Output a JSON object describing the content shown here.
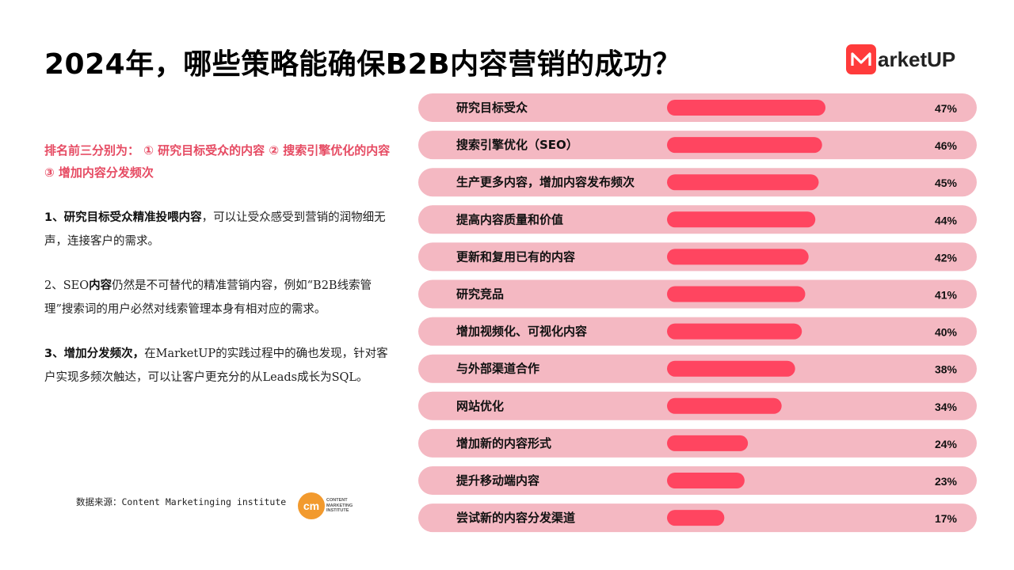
{
  "title": "2024年，哪些策略能确保B2B内容营销的成功？",
  "brand": {
    "text": "arketUP",
    "accent_color": "#ff3b3b",
    "mark_icon": "m-logo-icon"
  },
  "highlight": "排名前三分别为： ① 研究目标受众的内容 ② 搜索引擎优化的内容 ③ 增加内容分发频次",
  "points": [
    {
      "bold": "1、研究目标受众精准投喂内容",
      "text": "，可以让受众感受到营销的润物细无声，连接客户的需求。"
    },
    {
      "prefix": " 2、SEO",
      "bold": "内容",
      "text": "仍然是不可替代的精准营销内容，例如“B2B线索管理”搜索词的用户必然对线索管理本身有相对应的需求。"
    },
    {
      "bold": "3、增加分发频次，",
      "text": "在MarketUP的实践过程中的确也发现，针对客户实现多频次触达，可以让客户更充分的从Leads成长为SQL。"
    }
  ],
  "source": "数据来源：Content Marketinging institute",
  "cmi_logo": {
    "mark": "cm",
    "lines": [
      "CONTENT",
      "MARKETING",
      "INSTITUTE"
    ]
  },
  "colors": {
    "pill_bg": "#f4b8c2",
    "bar": "#ff4560",
    "highlight_text": "#e64b63"
  },
  "chart_data": {
    "type": "bar",
    "orientation": "horizontal",
    "categories": [
      "研究目标受众",
      "搜索引擎优化（SEO）",
      "生产更多内容，增加内容发布频次",
      "提高内容质量和价值",
      "更新和复用已有的内容",
      "研究竞品",
      "增加视频化、可视化内容",
      "与外部渠道合作",
      "网站优化",
      "增加新的内容形式",
      "提升移动端内容",
      "尝试新的内容分发渠道"
    ],
    "values": [
      47,
      46,
      45,
      44,
      42,
      41,
      40,
      38,
      34,
      24,
      23,
      17
    ],
    "value_labels": [
      "47%",
      "46%",
      "45%",
      "44%",
      "42%",
      "41%",
      "40%",
      "38%",
      "34%",
      "24%",
      "23%",
      "17%"
    ],
    "unit": "%",
    "grid": false,
    "legend": "none"
  }
}
